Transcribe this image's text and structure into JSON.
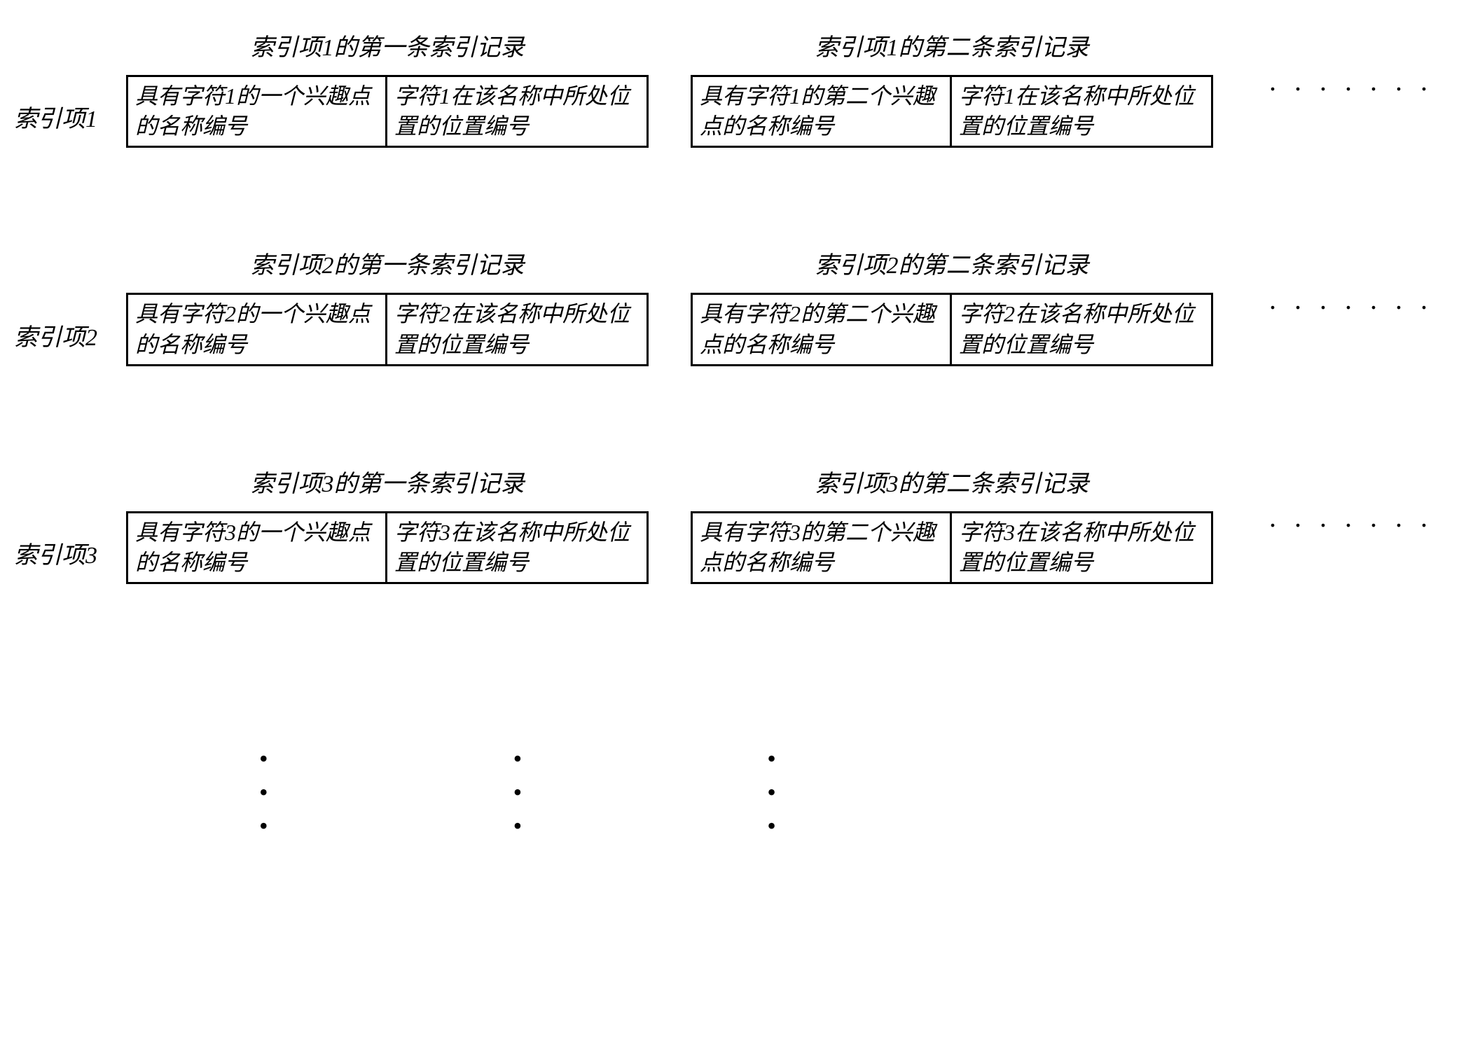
{
  "diagram": {
    "type": "table-diagram",
    "background_color": "#ffffff",
    "border_color": "#000000",
    "text_color": "#000000",
    "font_style": "italic",
    "label_fontsize": 34,
    "title_fontsize": 34,
    "cell_fontsize": 32,
    "ellipsis_text": ". . . . . . .",
    "rows": [
      {
        "label": "索引项1",
        "records": [
          {
            "title": "索引项1的第一条索引记录",
            "cells": [
              "具有字符1的一个兴趣点的名称编号",
              "字符1在该名称中所处位置的位置编号"
            ]
          },
          {
            "title": "索引项1的第二条索引记录",
            "cells": [
              "具有字符1的第二个兴趣点的名称编号",
              "字符1在该名称中所处位置的位置编号"
            ]
          }
        ]
      },
      {
        "label": "索引项2",
        "records": [
          {
            "title": "索引项2的第一条索引记录",
            "cells": [
              "具有字符2的一个兴趣点的名称编号",
              "字符2在该名称中所处位置的位置编号"
            ]
          },
          {
            "title": "索引项2的第二条索引记录",
            "cells": [
              "具有字符2的第二个兴趣点的名称编号",
              "字符2在该名称中所处位置的位置编号"
            ]
          }
        ]
      },
      {
        "label": "索引项3",
        "records": [
          {
            "title": "索引项3的第一条索引记录",
            "cells": [
              "具有字符3的一个兴趣点的名称编号",
              "字符3在该名称中所处位置的位置编号"
            ]
          },
          {
            "title": "索引项3的第二条索引记录",
            "cells": [
              "具有字符3的第二个兴趣点的名称编号",
              "字符3在该名称中所处位置的位置编号"
            ]
          }
        ]
      }
    ],
    "vertical_ellipsis_dot": "•"
  }
}
